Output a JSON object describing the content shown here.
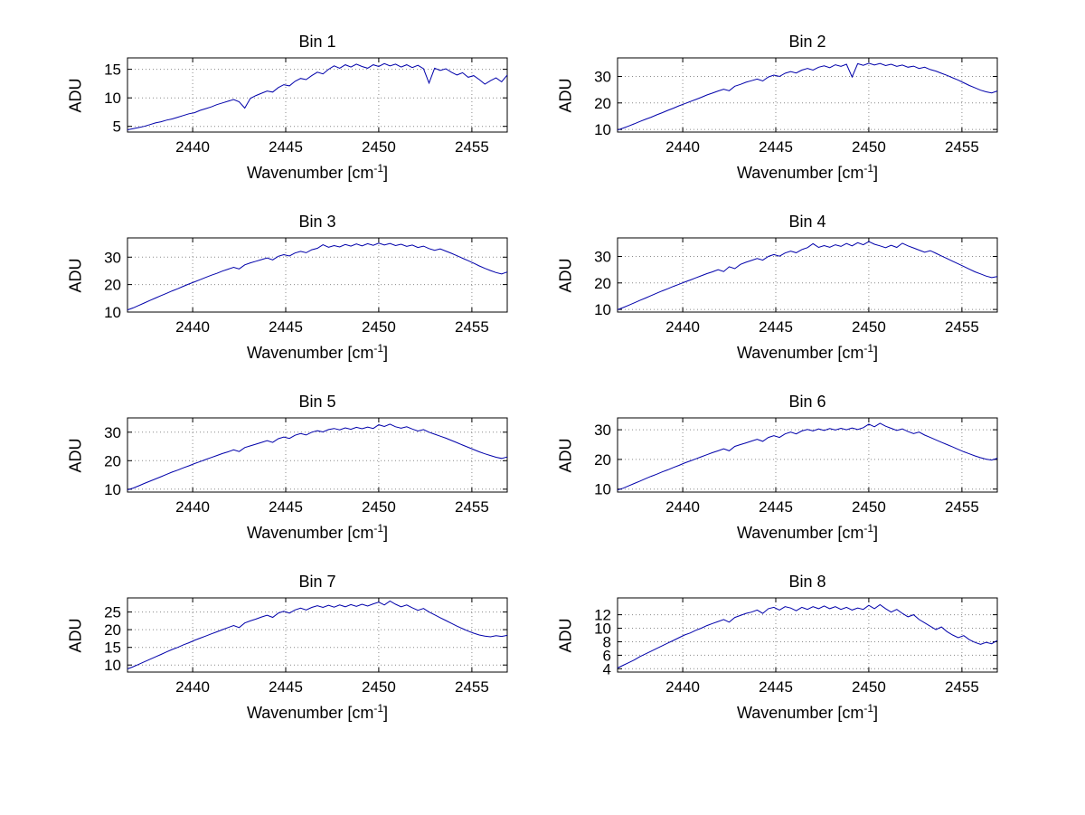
{
  "figure": {
    "background": "#ffffff",
    "line_color": "#0000aa",
    "grid_color": "#8a8a8a",
    "axis_color": "#000000",
    "rows": 4,
    "cols": 2
  },
  "x_values": [
    2436.5,
    2436.8,
    2437.1,
    2437.4,
    2437.7,
    2438,
    2438.3,
    2438.6,
    2438.9,
    2439.2,
    2439.5,
    2439.8,
    2440.1,
    2440.4,
    2440.7,
    2441,
    2441.3,
    2441.6,
    2441.9,
    2442.2,
    2442.5,
    2442.8,
    2443.1,
    2443.4,
    2443.7,
    2444,
    2444.3,
    2444.6,
    2444.9,
    2445.2,
    2445.5,
    2445.8,
    2446.1,
    2446.4,
    2446.7,
    2447,
    2447.3,
    2447.6,
    2447.9,
    2448.2,
    2448.5,
    2448.8,
    2449.1,
    2449.4,
    2449.7,
    2450,
    2450.3,
    2450.6,
    2450.9,
    2451.2,
    2451.5,
    2451.8,
    2452.1,
    2452.4,
    2452.7,
    2453,
    2453.3,
    2453.6,
    2453.9,
    2454.2,
    2454.5,
    2454.8,
    2455.1,
    2455.4,
    2455.7,
    2456,
    2456.3,
    2456.6,
    2456.9
  ],
  "chart_data": [
    {
      "type": "line",
      "title": "Bin 1",
      "ylabel": "ADU",
      "xlabel": {
        "pre": "Wavenumber [cm",
        "sup": "-1",
        "post": "]"
      },
      "x": "x_values",
      "xlim": [
        2436.5,
        2456.9
      ],
      "ylim": [
        4,
        17
      ],
      "xticks": [
        2440,
        2445,
        2450,
        2455
      ],
      "yticks": [
        5,
        10,
        15
      ],
      "grid": true,
      "values": [
        4.4,
        4.6,
        4.8,
        5,
        5.3,
        5.6,
        5.8,
        6.1,
        6.3,
        6.6,
        6.9,
        7.2,
        7.4,
        7.8,
        8.1,
        8.4,
        8.8,
        9.1,
        9.4,
        9.7,
        9.3,
        8.2,
        9.9,
        10.4,
        10.8,
        11.2,
        11,
        11.8,
        12.3,
        12.1,
        12.9,
        13.4,
        13.2,
        13.9,
        14.5,
        14.2,
        15,
        15.6,
        15.2,
        15.8,
        15.4,
        15.9,
        15.5,
        15.2,
        15.8,
        15.5,
        16,
        15.6,
        15.9,
        15.4,
        15.8,
        15.3,
        15.7,
        15.1,
        12.6,
        15.2,
        14.8,
        15.1,
        14.5,
        14,
        14.4,
        13.6,
        13.9,
        13.2,
        12.4,
        13,
        13.5,
        12.8,
        14
      ]
    },
    {
      "type": "line",
      "title": "Bin 2",
      "ylabel": "ADU",
      "xlabel": {
        "pre": "Wavenumber [cm",
        "sup": "-1",
        "post": "]"
      },
      "x": "x_values",
      "xlim": [
        2436.5,
        2456.9
      ],
      "ylim": [
        9,
        37
      ],
      "xticks": [
        2440,
        2445,
        2450,
        2455
      ],
      "yticks": [
        10,
        20,
        30
      ],
      "grid": true,
      "values": [
        9.8,
        10.5,
        11.3,
        12.1,
        13,
        13.8,
        14.6,
        15.5,
        16.3,
        17.2,
        18,
        18.9,
        19.7,
        20.5,
        21.3,
        22.1,
        23,
        23.7,
        24.5,
        25.2,
        24.6,
        26.3,
        27,
        27.8,
        28.4,
        29,
        28.3,
        29.8,
        30.5,
        30,
        31.2,
        31.8,
        31.3,
        32.4,
        33,
        32.4,
        33.5,
        34,
        33.3,
        34.4,
        33.8,
        34.6,
        29.8,
        34.8,
        34.2,
        35,
        34.3,
        34.9,
        34.1,
        34.6,
        33.8,
        34.3,
        33.5,
        33.9,
        33,
        33.5,
        32.6,
        32,
        31.2,
        30.4,
        29.5,
        28.6,
        27.6,
        26.6,
        25.7,
        24.8,
        24.2,
        23.8,
        24.5
      ]
    },
    {
      "type": "line",
      "title": "Bin 3",
      "ylabel": "ADU",
      "xlabel": {
        "pre": "Wavenumber [cm",
        "sup": "-1",
        "post": "]"
      },
      "x": "x_values",
      "xlim": [
        2436.5,
        2456.9
      ],
      "ylim": [
        10,
        37
      ],
      "xticks": [
        2440,
        2445,
        2450,
        2455
      ],
      "yticks": [
        10,
        20,
        30
      ],
      "grid": true,
      "values": [
        10.8,
        11.5,
        12.4,
        13.3,
        14.2,
        15.1,
        16,
        16.8,
        17.7,
        18.5,
        19.4,
        20.2,
        21,
        21.8,
        22.6,
        23.4,
        24.1,
        24.9,
        25.6,
        26.3,
        25.7,
        27.2,
        27.9,
        28.5,
        29.1,
        29.7,
        29,
        30.3,
        30.9,
        30.4,
        31.5,
        32.1,
        31.6,
        32.7,
        33.2,
        34.5,
        33.6,
        34.2,
        33.7,
        34.6,
        34,
        34.8,
        34.1,
        34.9,
        34.3,
        35.1,
        34.4,
        35,
        34.2,
        34.7,
        33.9,
        34.4,
        33.5,
        34,
        33.1,
        32.5,
        33,
        32.2,
        31.4,
        30.5,
        29.6,
        28.7,
        27.8,
        26.8,
        25.9,
        25.1,
        24.4,
        23.9,
        24.6
      ]
    },
    {
      "type": "line",
      "title": "Bin 4",
      "ylabel": "ADU",
      "xlabel": {
        "pre": "Wavenumber [cm",
        "sup": "-1",
        "post": "]"
      },
      "x": "x_values",
      "xlim": [
        2436.5,
        2456.9
      ],
      "ylim": [
        9,
        37
      ],
      "xticks": [
        2440,
        2445,
        2450,
        2455
      ],
      "yticks": [
        10,
        20,
        30
      ],
      "grid": true,
      "values": [
        9.9,
        10.7,
        11.6,
        12.5,
        13.4,
        14.3,
        15.2,
        16.1,
        17,
        17.8,
        18.7,
        19.5,
        20.3,
        21.1,
        21.9,
        22.7,
        23.5,
        24.2,
        25,
        24.3,
        26.1,
        25.4,
        27,
        27.8,
        28.5,
        29.2,
        28.6,
        30,
        30.7,
        30.1,
        31.3,
        32,
        31.4,
        32.6,
        33.3,
        34.8,
        33.4,
        34.1,
        33.5,
        34.4,
        33.8,
        34.9,
        34,
        35.2,
        34.4,
        35.6,
        34.6,
        34,
        33.3,
        34.2,
        33.4,
        35,
        34,
        33.2,
        32.4,
        31.6,
        32.2,
        31.2,
        30.2,
        29.2,
        28.2,
        27.2,
        26.2,
        25.2,
        24.2,
        23.4,
        22.6,
        22,
        22.4
      ]
    },
    {
      "type": "line",
      "title": "Bin 5",
      "ylabel": "ADU",
      "xlabel": {
        "pre": "Wavenumber [cm",
        "sup": "-1",
        "post": "]"
      },
      "x": "x_values",
      "xlim": [
        2436.5,
        2456.9
      ],
      "ylim": [
        9,
        35
      ],
      "xticks": [
        2440,
        2445,
        2450,
        2455
      ],
      "yticks": [
        10,
        20,
        30
      ],
      "grid": true,
      "values": [
        9.8,
        10.4,
        11.2,
        12,
        12.8,
        13.6,
        14.4,
        15.2,
        16,
        16.7,
        17.5,
        18.2,
        19,
        19.7,
        20.4,
        21.1,
        21.8,
        22.5,
        23.1,
        23.8,
        23.2,
        24.6,
        25.2,
        25.8,
        26.4,
        27,
        26.4,
        27.7,
        28.3,
        27.8,
        28.9,
        29.5,
        29,
        30,
        30.5,
        30.1,
        30.9,
        31.3,
        30.8,
        31.5,
        31,
        31.7,
        31.2,
        31.8,
        31.3,
        32.6,
        32,
        32.8,
        31.9,
        31.4,
        31.9,
        31.1,
        30.4,
        30.9,
        30,
        29.3,
        28.6,
        27.9,
        27.1,
        26.3,
        25.5,
        24.7,
        23.9,
        23.1,
        22.4,
        21.8,
        21.2,
        20.8,
        21.3
      ]
    },
    {
      "type": "line",
      "title": "Bin 6",
      "ylabel": "ADU",
      "xlabel": {
        "pre": "Wavenumber [cm",
        "sup": "-1",
        "post": "]"
      },
      "x": "x_values",
      "xlim": [
        2436.5,
        2456.9
      ],
      "ylim": [
        9,
        34
      ],
      "xticks": [
        2440,
        2445,
        2450,
        2455
      ],
      "yticks": [
        10,
        20,
        30
      ],
      "grid": true,
      "values": [
        9.7,
        10.3,
        11.1,
        11.9,
        12.7,
        13.5,
        14.3,
        15,
        15.8,
        16.5,
        17.3,
        18,
        18.8,
        19.5,
        20.2,
        20.9,
        21.6,
        22.3,
        22.9,
        23.6,
        22.9,
        24.4,
        25,
        25.6,
        26.2,
        26.8,
        26.1,
        27.4,
        28,
        27.4,
        28.6,
        29.2,
        28.6,
        29.6,
        30.1,
        29.6,
        30.3,
        29.8,
        30.4,
        29.9,
        30.5,
        30,
        30.6,
        30.1,
        30.7,
        31.9,
        31,
        32.2,
        31.2,
        30.5,
        29.8,
        30.3,
        29.4,
        28.7,
        29.2,
        28.2,
        27.4,
        26.6,
        25.8,
        25,
        24.2,
        23.4,
        22.6,
        21.9,
        21.2,
        20.6,
        20.1,
        19.8,
        20.4
      ]
    },
    {
      "type": "line",
      "title": "Bin 7",
      "ylabel": "ADU",
      "xlabel": {
        "pre": "Wavenumber [cm",
        "sup": "-1",
        "post": "]"
      },
      "x": "x_values",
      "xlim": [
        2436.5,
        2456.9
      ],
      "ylim": [
        8,
        29
      ],
      "xticks": [
        2440,
        2445,
        2450,
        2455
      ],
      "yticks": [
        10,
        15,
        20,
        25
      ],
      "grid": true,
      "values": [
        8.9,
        9.5,
        10.2,
        10.9,
        11.6,
        12.3,
        13,
        13.7,
        14.4,
        15,
        15.7,
        16.3,
        17,
        17.6,
        18.2,
        18.8,
        19.4,
        20,
        20.6,
        21.2,
        20.6,
        21.9,
        22.5,
        23,
        23.6,
        24.1,
        23.5,
        24.7,
        25.2,
        24.7,
        25.6,
        26.1,
        25.6,
        26.3,
        26.8,
        26.3,
        26.9,
        26.4,
        27,
        26.5,
        27.1,
        26.6,
        27.2,
        26.7,
        27.3,
        27.8,
        27,
        28.1,
        27.2,
        26.5,
        27,
        26.2,
        25.5,
        26,
        25,
        24.2,
        23.4,
        22.6,
        21.8,
        21,
        20.3,
        19.6,
        19,
        18.5,
        18.2,
        18,
        18.3,
        18.1,
        18.4
      ]
    },
    {
      "type": "line",
      "title": "Bin 8",
      "ylabel": "ADU",
      "xlabel": {
        "pre": "Wavenumber [cm",
        "sup": "-1",
        "post": "]"
      },
      "x": "x_values",
      "xlim": [
        2436.5,
        2456.9
      ],
      "ylim": [
        3.5,
        14.5
      ],
      "xticks": [
        2440,
        2445,
        2450,
        2455
      ],
      "yticks": [
        4,
        6,
        8,
        10,
        12
      ],
      "grid": true,
      "values": [
        4.1,
        4.5,
        4.9,
        5.3,
        5.8,
        6.2,
        6.6,
        7,
        7.4,
        7.8,
        8.2,
        8.6,
        9,
        9.3,
        9.7,
        10,
        10.4,
        10.7,
        11,
        11.3,
        10.9,
        11.6,
        11.9,
        12.2,
        12.4,
        12.7,
        12.2,
        12.9,
        13.1,
        12.7,
        13.2,
        13,
        12.6,
        13.1,
        12.8,
        13.2,
        12.9,
        13.3,
        12.9,
        13.2,
        12.8,
        13.1,
        12.7,
        13,
        12.8,
        13.4,
        12.9,
        13.5,
        12.9,
        12.4,
        12.8,
        12.2,
        11.7,
        12,
        11.3,
        10.8,
        10.3,
        9.8,
        10.2,
        9.5,
        9,
        8.6,
        8.9,
        8.3,
        7.9,
        7.6,
        7.9,
        7.7,
        8.2
      ]
    }
  ]
}
